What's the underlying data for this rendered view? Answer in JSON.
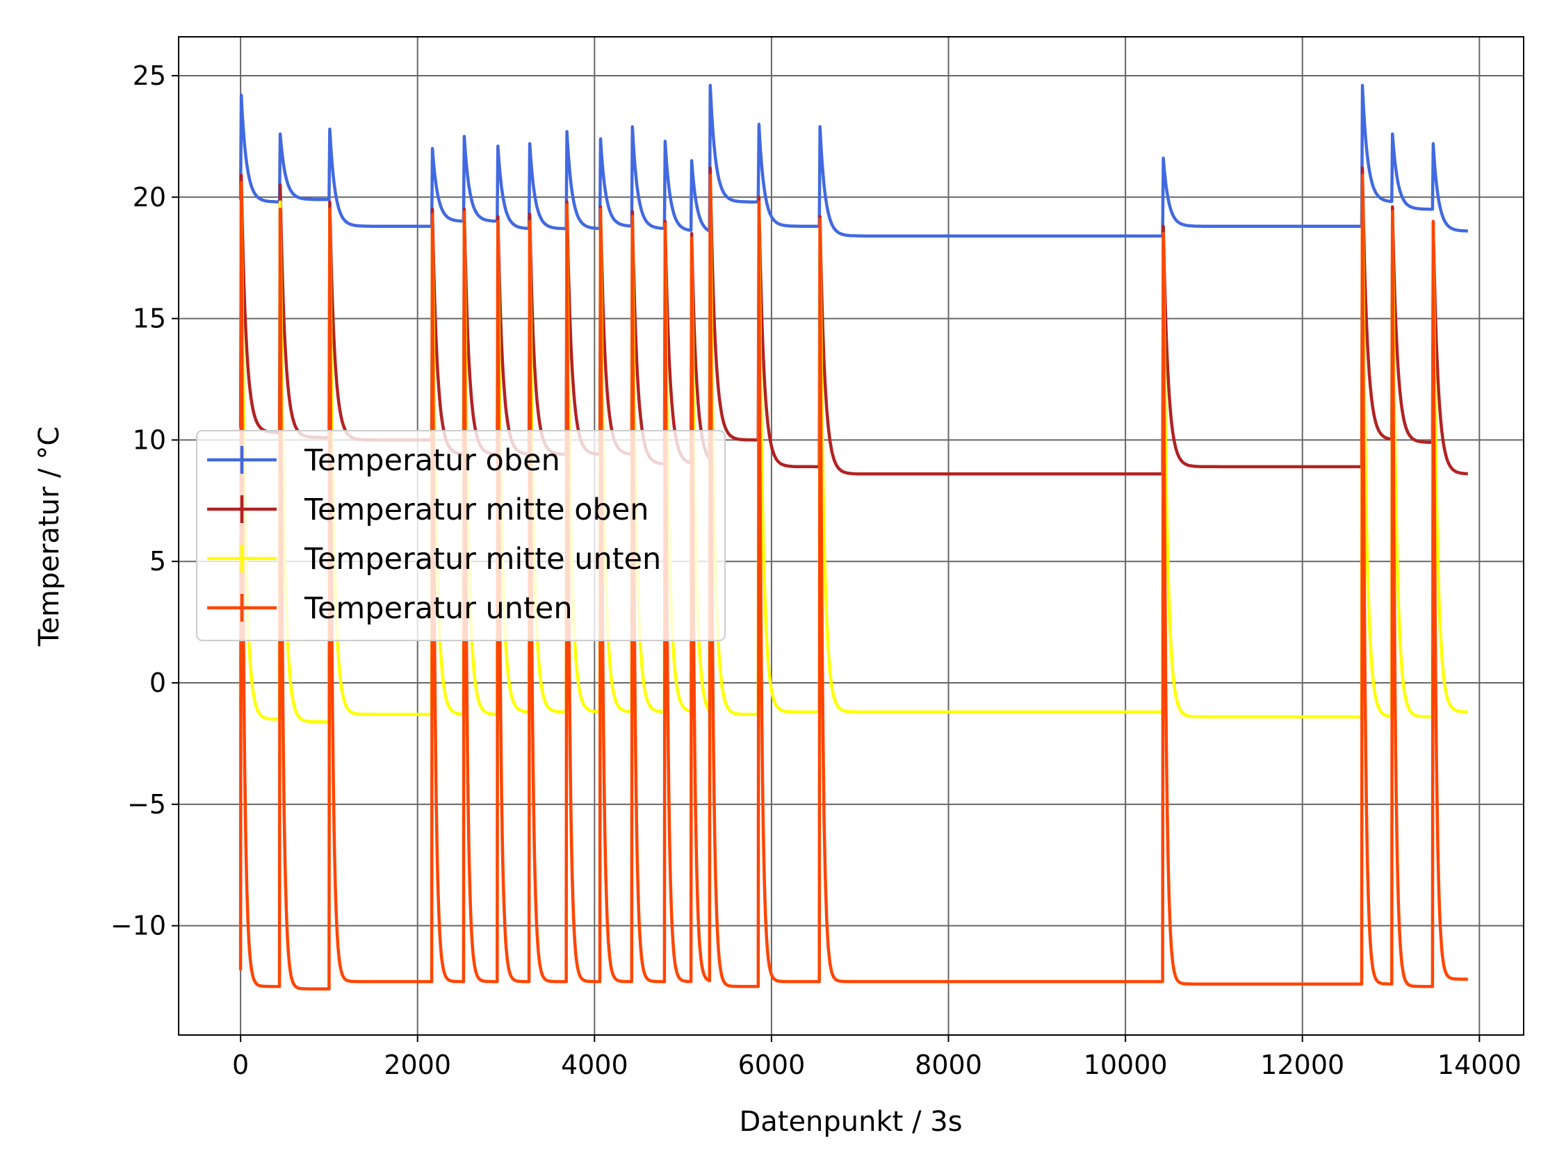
{
  "chart_data": {
    "type": "line",
    "xlabel": "Datenpunkt / 3s",
    "ylabel": "Temperatur / °C",
    "xlim": [
      -700,
      14500
    ],
    "ylim": [
      -14.5,
      26.6
    ],
    "xticks": [
      0,
      2000,
      4000,
      6000,
      8000,
      10000,
      12000,
      14000
    ],
    "xtick_labels": [
      "0",
      "2000",
      "4000",
      "6000",
      "8000",
      "10000",
      "12000",
      "14000"
    ],
    "yticks": [
      -10,
      -5,
      0,
      5,
      10,
      15,
      20,
      25
    ],
    "ytick_labels": [
      "−10",
      "−5",
      "0",
      "5",
      "10",
      "15",
      "20",
      "25"
    ],
    "grid": true,
    "legend_position": "center-left",
    "x_range": [
      0,
      13870
    ],
    "segments": [
      {
        "start": 0,
        "end": 440,
        "peaks": [
          24.2,
          20.9,
          20.5,
          20.6
        ],
        "finals": [
          19.8,
          10.3,
          -1.5,
          -12.5
        ]
      },
      {
        "start": 440,
        "end": 1000,
        "peaks": [
          22.6,
          20.5,
          19.8,
          19.5
        ],
        "finals": [
          19.9,
          10.1,
          -1.6,
          -12.6
        ]
      },
      {
        "start": 1000,
        "end": 2160,
        "peaks": [
          22.8,
          19.8,
          19.5,
          19.5
        ],
        "finals": [
          18.8,
          10.0,
          -1.3,
          -12.3
        ]
      },
      {
        "start": 2160,
        "end": 2520,
        "peaks": [
          22.0,
          19.5,
          19.2,
          19.3
        ],
        "finals": [
          19.0,
          9.4,
          -1.3,
          -12.3
        ]
      },
      {
        "start": 2520,
        "end": 2900,
        "peaks": [
          22.5,
          19.5,
          19.3,
          19.4
        ],
        "finals": [
          19.0,
          9.4,
          -1.3,
          -12.3
        ]
      },
      {
        "start": 2900,
        "end": 3260,
        "peaks": [
          22.1,
          19.2,
          19.0,
          19.0
        ],
        "finals": [
          18.7,
          9.4,
          -1.2,
          -12.3
        ]
      },
      {
        "start": 3260,
        "end": 3680,
        "peaks": [
          22.2,
          19.3,
          19.0,
          19.0
        ],
        "finals": [
          18.7,
          9.4,
          -1.2,
          -12.3
        ]
      },
      {
        "start": 3680,
        "end": 4060,
        "peaks": [
          22.7,
          19.8,
          19.6,
          19.7
        ],
        "finals": [
          18.7,
          9.4,
          -1.2,
          -12.3
        ]
      },
      {
        "start": 4060,
        "end": 4420,
        "peaks": [
          22.4,
          19.6,
          19.5,
          19.5
        ],
        "finals": [
          18.8,
          9.4,
          -1.2,
          -12.3
        ]
      },
      {
        "start": 4420,
        "end": 4790,
        "peaks": [
          22.9,
          19.4,
          19.2,
          19.2
        ],
        "finals": [
          18.7,
          9.0,
          -1.2,
          -12.3
        ]
      },
      {
        "start": 4790,
        "end": 5090,
        "peaks": [
          22.3,
          19.0,
          18.8,
          18.9
        ],
        "finals": [
          18.6,
          9.0,
          -1.2,
          -12.3
        ]
      },
      {
        "start": 5090,
        "end": 5300,
        "peaks": [
          21.5,
          18.5,
          18.3,
          18.3
        ],
        "finals": [
          18.5,
          9.0,
          -1.4,
          -12.3
        ]
      },
      {
        "start": 5300,
        "end": 5850,
        "peaks": [
          24.6,
          21.2,
          20.9,
          20.9
        ],
        "finals": [
          19.8,
          10.0,
          -1.3,
          -12.5
        ]
      },
      {
        "start": 5850,
        "end": 6540,
        "peaks": [
          23.0,
          20.0,
          19.8,
          19.8
        ],
        "finals": [
          18.8,
          8.9,
          -1.2,
          -12.3
        ]
      },
      {
        "start": 6540,
        "end": 10420,
        "peaks": [
          22.9,
          19.2,
          19.0,
          19.1
        ],
        "finals": [
          18.4,
          8.6,
          -1.2,
          -12.3
        ]
      },
      {
        "start": 10420,
        "end": 12670,
        "peaks": [
          21.6,
          18.8,
          18.5,
          18.5
        ],
        "finals": [
          18.8,
          8.9,
          -1.4,
          -12.4
        ]
      },
      {
        "start": 12670,
        "end": 13010,
        "peaks": [
          24.6,
          21.2,
          20.9,
          20.9
        ],
        "finals": [
          19.8,
          10.0,
          -1.4,
          -12.4
        ]
      },
      {
        "start": 13010,
        "end": 13470,
        "peaks": [
          22.6,
          19.6,
          19.4,
          19.4
        ],
        "finals": [
          19.5,
          9.9,
          -1.4,
          -12.5
        ]
      },
      {
        "start": 13470,
        "end": 13870,
        "peaks": [
          22.2,
          19.0,
          18.9,
          19.0
        ],
        "finals": [
          18.6,
          8.6,
          -1.2,
          -12.2
        ]
      }
    ],
    "series": [
      {
        "name": "Temperatur oben",
        "color": "#4169e1"
      },
      {
        "name": "Temperatur mitte oben",
        "color": "#b22222"
      },
      {
        "name": "Temperatur mitte unten",
        "color": "#ffff00"
      },
      {
        "name": "Temperatur unten",
        "color": "#ff4500"
      }
    ]
  }
}
